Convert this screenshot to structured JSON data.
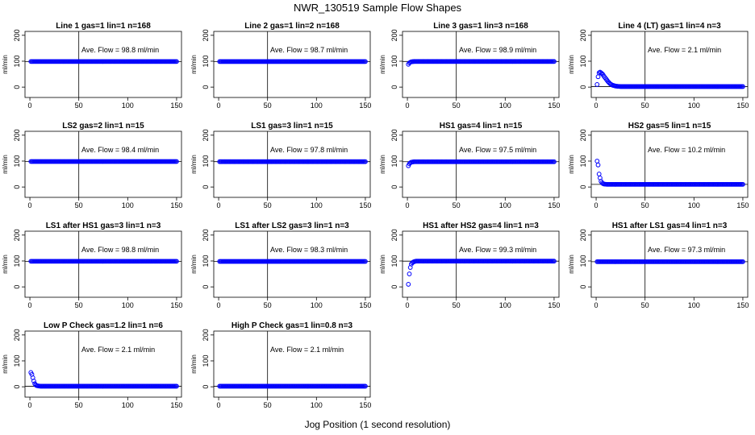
{
  "chart_data": {
    "type": "scatter",
    "title": "NWR_130519  Sample Flow Shapes",
    "xlabel": "Jog Position (1 second resolution)",
    "ylabel": "ml/min",
    "xlim": [
      -5,
      155
    ],
    "ylim": [
      -40,
      215
    ],
    "x_ticks": [
      0,
      50,
      100,
      150
    ],
    "y_ticks": [
      0,
      100,
      200
    ],
    "x_tick_labels": [
      "0",
      "50",
      "100",
      "150"
    ],
    "y_tick_labels": [
      "0",
      "100",
      "200"
    ],
    "reference_x": 50,
    "grid": false,
    "legend": "none",
    "point_color": "#0000ff",
    "panels": [
      {
        "title": "Line 1 gas=1 lin=1 n=168",
        "annotation": "Ave. Flow =  98.8  ml/min",
        "ave_flow": 98.8,
        "ref_y": 98.8,
        "shape": {
          "kind": "flat",
          "level": 98.8
        }
      },
      {
        "title": "Line 2 gas=1 lin=2 n=168",
        "annotation": "Ave. Flow =  98.7  ml/min",
        "ave_flow": 98.7,
        "ref_y": 98.7,
        "shape": {
          "kind": "flat",
          "level": 98.7
        }
      },
      {
        "title": "Line 3 gas=1 lin=3 n=168",
        "annotation": "Ave. Flow =  98.9  ml/min",
        "ave_flow": 98.9,
        "ref_y": 98.9,
        "shape": {
          "kind": "rise",
          "start": 88,
          "level": 98.9
        }
      },
      {
        "title": "Line 4 (LT) gas=1 lin=4 n=3",
        "annotation": "Ave. Flow =  2.1  ml/min",
        "ave_flow": 2.1,
        "ref_y": 2.1,
        "shape": {
          "kind": "bump",
          "points": [
            [
              1,
              10
            ],
            [
              2,
              40
            ],
            [
              3,
              55
            ],
            [
              4,
              58
            ],
            [
              5,
              55
            ],
            [
              6,
              52
            ],
            [
              7,
              48
            ],
            [
              8,
              42
            ],
            [
              9,
              37
            ],
            [
              10,
              32
            ],
            [
              11,
              27
            ],
            [
              12,
              22
            ],
            [
              13,
              18
            ],
            [
              14,
              14
            ],
            [
              15,
              11
            ],
            [
              16,
              9
            ],
            [
              17,
              7
            ],
            [
              18,
              6
            ],
            [
              19,
              5
            ],
            [
              20,
              4
            ],
            [
              21,
              3.5
            ],
            [
              22,
              3
            ],
            [
              23,
              2.8
            ],
            [
              24,
              2.5
            ],
            [
              25,
              2.2
            ]
          ],
          "level": 2.1
        }
      },
      {
        "title": "LS2 gas=2 lin=1 n=15",
        "annotation": "Ave. Flow =  98.4  ml/min",
        "ave_flow": 98.4,
        "ref_y": 98.4,
        "shape": {
          "kind": "flat",
          "level": 98.4
        }
      },
      {
        "title": "LS1 gas=3 lin=1 n=15",
        "annotation": "Ave. Flow =  97.8  ml/min",
        "ave_flow": 97.8,
        "ref_y": 97.8,
        "shape": {
          "kind": "flat",
          "level": 97.8
        }
      },
      {
        "title": "HS1 gas=4 lin=1 n=15",
        "annotation": "Ave. Flow =  97.5  ml/min",
        "ave_flow": 97.5,
        "ref_y": 97.5,
        "shape": {
          "kind": "rise",
          "start": 82,
          "level": 97.5
        }
      },
      {
        "title": "HS2 gas=5 lin=1 n=15",
        "annotation": "Ave. Flow =  10.2  ml/min",
        "ave_flow": 10.2,
        "ref_y": 10.2,
        "shape": {
          "kind": "bump",
          "points": [
            [
              1,
              100
            ],
            [
              2,
              85
            ],
            [
              3,
              50
            ],
            [
              4,
              35
            ],
            [
              5,
              22
            ],
            [
              6,
              16
            ],
            [
              7,
              13
            ],
            [
              8,
              11.5
            ],
            [
              9,
              11
            ],
            [
              10,
              10.5
            ]
          ],
          "level": 10.2
        }
      },
      {
        "title": "LS1 after HS1 gas=3 lin=1 n=3",
        "annotation": "Ave. Flow =  98.8  ml/min",
        "ave_flow": 98.8,
        "ref_y": 98.8,
        "shape": {
          "kind": "flat",
          "level": 98.8
        }
      },
      {
        "title": "LS1 after LS2 gas=3 lin=1 n=3",
        "annotation": "Ave. Flow =  98.3  ml/min",
        "ave_flow": 98.3,
        "ref_y": 98.3,
        "shape": {
          "kind": "flat",
          "level": 98.3
        }
      },
      {
        "title": "HS1 after HS2 gas=4 lin=1 n=3",
        "annotation": "Ave. Flow =  99.3  ml/min",
        "ave_flow": 99.3,
        "ref_y": 99.3,
        "shape": {
          "kind": "bump",
          "points": [
            [
              1,
              10
            ],
            [
              2,
              50
            ],
            [
              3,
              75
            ],
            [
              4,
              88
            ],
            [
              5,
              93
            ],
            [
              6,
              96
            ],
            [
              7,
              97.5
            ],
            [
              8,
              98.5
            ]
          ],
          "level": 99.3
        }
      },
      {
        "title": "HS1 after LS1 gas=4 lin=1 n=3",
        "annotation": "Ave. Flow =  97.3  ml/min",
        "ave_flow": 97.3,
        "ref_y": 97.3,
        "shape": {
          "kind": "flat",
          "level": 97.3
        }
      },
      {
        "title": "Low P Check gas=1.2 lin=1 n=6",
        "annotation": "Ave. Flow =  2.1  ml/min",
        "ave_flow": 2.1,
        "ref_y": 2.1,
        "shape": {
          "kind": "bump",
          "points": [
            [
              1,
              55
            ],
            [
              2,
              48
            ],
            [
              3,
              35
            ],
            [
              4,
              22
            ],
            [
              5,
              12
            ],
            [
              6,
              7
            ],
            [
              7,
              4.5
            ],
            [
              8,
              3.5
            ],
            [
              9,
              3
            ],
            [
              10,
              2.5
            ]
          ],
          "level": 2.1
        }
      },
      {
        "title": "High P Check gas=1 lin=0.8 n=3",
        "annotation": "Ave. Flow =  2.1  ml/min",
        "ave_flow": 2.1,
        "ref_y": 2.1,
        "shape": {
          "kind": "flat",
          "level": 2.1
        }
      }
    ]
  }
}
